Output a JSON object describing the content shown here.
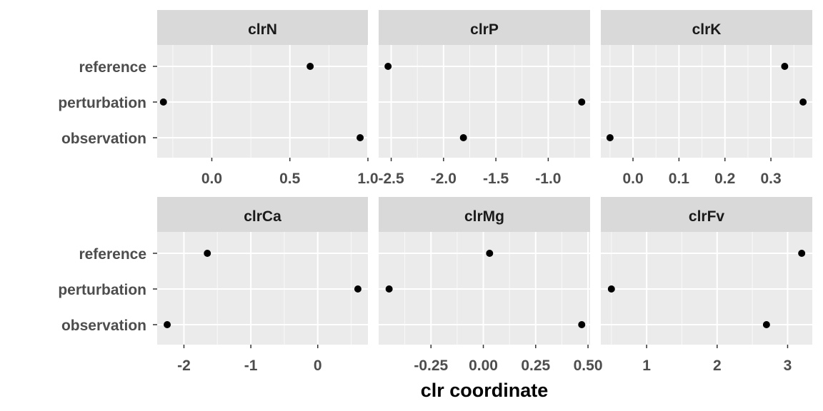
{
  "chart_data": {
    "type": "scatter",
    "xlabel": "clr coordinate",
    "ylabel": "",
    "categories": [
      "reference",
      "perturbation",
      "observation"
    ],
    "colors": {
      "panel_bg": "#ebebeb",
      "strip_bg": "#d9d9d9",
      "grid": "#ffffff",
      "point": "#000000",
      "tick_text": "#4d4d4d",
      "strip_text": "#1a1a1a"
    },
    "grid": true,
    "facets": [
      {
        "title": "clrN",
        "xlim": [
          -0.35,
          1.0
        ],
        "ticks": [
          0.0,
          0.5,
          1.0
        ],
        "tick_labels": [
          "0.0",
          "0.5",
          "1.0"
        ],
        "points": [
          {
            "category": "reference",
            "x": 0.63
          },
          {
            "category": "perturbation",
            "x": -0.31
          },
          {
            "category": "observation",
            "x": 0.95
          }
        ]
      },
      {
        "title": "clrP",
        "xlim": [
          -2.62,
          -0.6
        ],
        "ticks": [
          -2.5,
          -2.0,
          -1.5,
          -1.0
        ],
        "tick_labels": [
          "-2.5",
          "-2.0",
          "-1.5",
          "-1.0"
        ],
        "points": [
          {
            "category": "reference",
            "x": -2.53
          },
          {
            "category": "perturbation",
            "x": -0.68
          },
          {
            "category": "observation",
            "x": -1.81
          }
        ]
      },
      {
        "title": "clrK",
        "xlim": [
          -0.07,
          0.39
        ],
        "ticks": [
          0.0,
          0.1,
          0.2,
          0.3
        ],
        "tick_labels": [
          "0.0",
          "0.1",
          "0.2",
          "0.3"
        ],
        "points": [
          {
            "category": "reference",
            "x": 0.33
          },
          {
            "category": "perturbation",
            "x": 0.37
          },
          {
            "category": "observation",
            "x": -0.05
          }
        ]
      },
      {
        "title": "clrCa",
        "xlim": [
          -2.4,
          0.75
        ],
        "ticks": [
          -2,
          -1,
          0
        ],
        "tick_labels": [
          "-2",
          "-1",
          "0"
        ],
        "points": [
          {
            "category": "reference",
            "x": -1.65
          },
          {
            "category": "perturbation",
            "x": 0.6
          },
          {
            "category": "observation",
            "x": -2.25
          }
        ]
      },
      {
        "title": "clrMg",
        "xlim": [
          -0.5,
          0.51
        ],
        "ticks": [
          -0.25,
          0.0,
          0.25,
          0.5
        ],
        "tick_labels": [
          "-0.25",
          "0.00",
          "0.25",
          "0.50"
        ],
        "points": [
          {
            "category": "reference",
            "x": 0.03
          },
          {
            "category": "perturbation",
            "x": -0.45
          },
          {
            "category": "observation",
            "x": 0.47
          }
        ]
      },
      {
        "title": "clrFv",
        "xlim": [
          0.35,
          3.35
        ],
        "ticks": [
          1,
          2,
          3
        ],
        "tick_labels": [
          "1",
          "2",
          "3"
        ],
        "points": [
          {
            "category": "reference",
            "x": 3.2
          },
          {
            "category": "perturbation",
            "x": 0.5
          },
          {
            "category": "observation",
            "x": 2.7
          }
        ]
      }
    ]
  }
}
